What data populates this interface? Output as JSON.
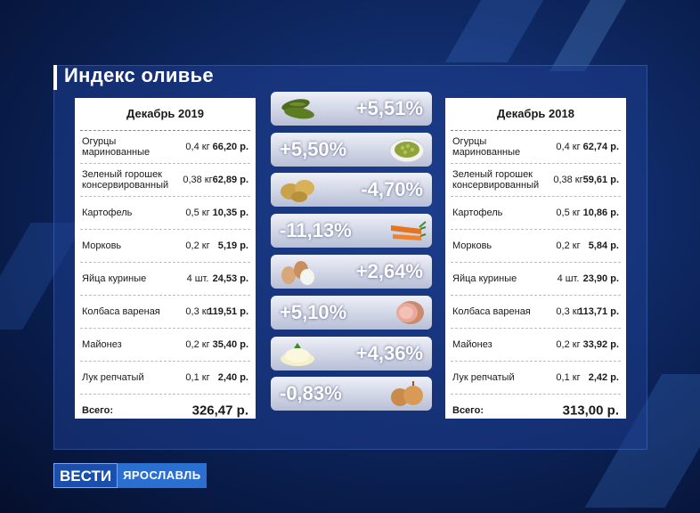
{
  "title": "Индекс оливье",
  "left_table": {
    "header": "Декабрь 2019",
    "rows": [
      {
        "name": "Огурцы маринованные",
        "qty": "0,4 кг",
        "price": "66,20 р."
      },
      {
        "name": "Зеленый горошек консервированный",
        "qty": "0,38 кг",
        "price": "62,89 р."
      },
      {
        "name": "Картофель",
        "qty": "0,5 кг",
        "price": "10,35 р."
      },
      {
        "name": "Морковь",
        "qty": "0,2 кг",
        "price": "5,19 р."
      },
      {
        "name": "Яйца куриные",
        "qty": "4 шт.",
        "price": "24,53 р."
      },
      {
        "name": "Колбаса вареная",
        "qty": "0,3 кг",
        "price": "119,51 р."
      },
      {
        "name": "Майонез",
        "qty": "0,2 кг",
        "price": "35,40 р."
      },
      {
        "name": "Лук репчатый",
        "qty": "0,1 кг",
        "price": "2,40 р."
      }
    ],
    "total_label": "Всего:",
    "total_value": "326,47 р."
  },
  "right_table": {
    "header": "Декабрь 2018",
    "rows": [
      {
        "name": "Огурцы маринованные",
        "qty": "0,4 кг",
        "price": "62,74 р."
      },
      {
        "name": "Зеленый горошек консервированный",
        "qty": "0,38 кг",
        "price": "59,61 р."
      },
      {
        "name": "Картофель",
        "qty": "0,5 кг",
        "price": "10,86 р."
      },
      {
        "name": "Морковь",
        "qty": "0,2 кг",
        "price": "5,84 р."
      },
      {
        "name": "Яйца куриные",
        "qty": "4 шт.",
        "price": "23,90 р."
      },
      {
        "name": "Колбаса вареная",
        "qty": "0,3 кг",
        "price": "113,71 р."
      },
      {
        "name": "Майонез",
        "qty": "0,2 кг",
        "price": "33,92 р."
      },
      {
        "name": "Лук репчатый",
        "qty": "0,1 кг",
        "price": "2,42 р."
      }
    ],
    "total_label": "Всего:",
    "total_value": "313,00 р."
  },
  "changes": [
    {
      "value": "+5,51%",
      "item_icon": "pickles-icon"
    },
    {
      "value": "+5,50%",
      "item_icon": "peas-icon"
    },
    {
      "value": "-4,70%",
      "item_icon": "potatoes-icon"
    },
    {
      "value": "-11,13%",
      "item_icon": "carrots-icon"
    },
    {
      "value": "+2,64%",
      "item_icon": "eggs-icon"
    },
    {
      "value": "+5,10%",
      "item_icon": "sausage-icon"
    },
    {
      "value": "+4,36%",
      "item_icon": "mayonnaise-icon"
    },
    {
      "value": "-0,83%",
      "item_icon": "onions-icon"
    }
  ],
  "logo": {
    "brand": "ВЕСТИ",
    "city": "ЯРОСЛАВЛЬ"
  },
  "colors": {
    "background": "#0f2a66",
    "accent": "#2b6fd1"
  }
}
